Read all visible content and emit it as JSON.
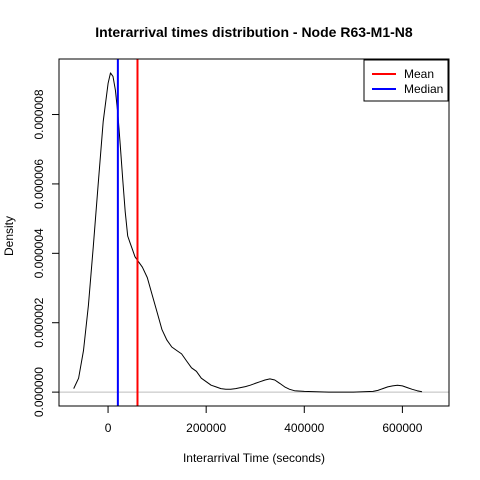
{
  "chart_data": {
    "type": "line",
    "title": "Interarrival times distribution - Node R63-M1-N8",
    "xlabel": "Interarrival Time (seconds)",
    "ylabel": "Density",
    "xlim": [
      -100000,
      695000
    ],
    "ylim": [
      -4e-07,
      9.6e-06
    ],
    "x_ticks": [
      {
        "value": 0,
        "label": "0"
      },
      {
        "value": 200000,
        "label": "200000"
      },
      {
        "value": 400000,
        "label": "400000"
      },
      {
        "value": 600000,
        "label": "600000"
      }
    ],
    "y_ticks": [
      {
        "value": 0,
        "label": "0.000000"
      },
      {
        "value": 2e-06,
        "label": "0.000002"
      },
      {
        "value": 4e-06,
        "label": "0.000004"
      },
      {
        "value": 6e-06,
        "label": "0.000006"
      },
      {
        "value": 8e-06,
        "label": "0.000008"
      }
    ],
    "series": [
      {
        "name": "",
        "color": "#000000",
        "x": [
          -70000,
          -60000,
          -50000,
          -40000,
          -30000,
          -20000,
          -10000,
          0,
          5000,
          10000,
          15000,
          20000,
          25000,
          30000,
          35000,
          40000,
          45000,
          50000,
          55000,
          60000,
          70000,
          80000,
          90000,
          100000,
          110000,
          120000,
          130000,
          140000,
          150000,
          160000,
          170000,
          180000,
          190000,
          200000,
          210000,
          220000,
          230000,
          240000,
          250000,
          260000,
          270000,
          280000,
          290000,
          300000,
          310000,
          320000,
          330000,
          340000,
          350000,
          360000,
          370000,
          380000,
          400000,
          450000,
          500000,
          540000,
          550000,
          560000,
          570000,
          580000,
          590000,
          600000,
          610000,
          620000,
          630000,
          640000
        ],
        "y": [
          1e-07,
          4e-07,
          1.2e-06,
          2.5e-06,
          4.2e-06,
          6e-06,
          7.8e-06,
          8.9e-06,
          9.2e-06,
          9.1e-06,
          8.7e-06,
          8e-06,
          7.1e-06,
          6.1e-06,
          5.2e-06,
          4.5e-06,
          4.3e-06,
          4.1e-06,
          3.9e-06,
          3.8e-06,
          3.6e-06,
          3.3e-06,
          2.8e-06,
          2.3e-06,
          1.8e-06,
          1.5e-06,
          1.3e-06,
          1.2e-06,
          1.1e-06,
          9e-07,
          7e-07,
          6e-07,
          4e-07,
          3e-07,
          2e-07,
          1.5e-07,
          1e-07,
          8e-08,
          8e-08,
          1e-07,
          1.3e-07,
          1.6e-07,
          2e-07,
          2.5e-07,
          3e-07,
          3.5e-07,
          3.8e-07,
          3.5e-07,
          2.5e-07,
          1.5e-07,
          8e-08,
          4e-08,
          2e-08,
          0.0,
          0.0,
          2e-08,
          5e-08,
          1e-07,
          1.5e-07,
          1.8e-07,
          2e-07,
          1.8e-07,
          1.3e-07,
          8e-08,
          4e-08,
          1e-08
        ]
      }
    ],
    "vlines": [
      {
        "name": "Mean",
        "x": 60000,
        "color": "#ff0000"
      },
      {
        "name": "Median",
        "x": 20000,
        "color": "#0000ff"
      }
    ],
    "baseline": {
      "y": 0,
      "color": "#bebebe"
    },
    "legend": {
      "position": "top-right",
      "entries": [
        {
          "label": "Mean",
          "color": "#ff0000"
        },
        {
          "label": "Median",
          "color": "#0000ff"
        }
      ]
    },
    "grid": false
  }
}
